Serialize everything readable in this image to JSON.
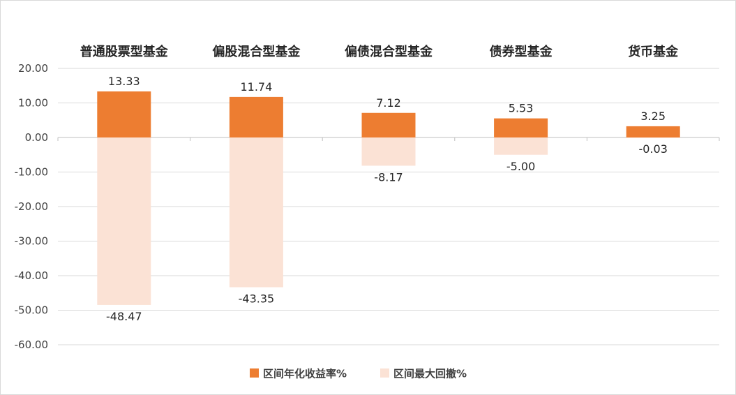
{
  "chart_data": {
    "type": "bar",
    "categories": [
      "普通股票型基金",
      "偏股混合型基金",
      "偏债混合型基金",
      "债券型基金",
      "货币基金"
    ],
    "series": [
      {
        "name": "区间年化收益率%",
        "values": [
          13.33,
          11.74,
          7.12,
          5.53,
          3.25
        ],
        "color": "#ED7D31"
      },
      {
        "name": "区间最大回撤%",
        "values": [
          -48.47,
          -43.35,
          -8.17,
          -5.0,
          -0.03
        ],
        "color": "#FBE2D5"
      }
    ],
    "stacked": true,
    "ylim": [
      -60,
      20
    ],
    "yticks": [
      "20.00",
      "10.00",
      "0.00",
      "-10.00",
      "-20.00",
      "-30.00",
      "-40.00",
      "-50.00",
      "-60.00"
    ],
    "data_labels": [
      [
        "13.33",
        "11.74",
        "7.12",
        "5.53",
        "3.25"
      ],
      [
        "-48.47",
        "-43.35",
        "-8.17",
        "-5.00",
        "-0.03"
      ]
    ],
    "grid": true,
    "category_axis_position": "top",
    "legend_position": "bottom"
  }
}
